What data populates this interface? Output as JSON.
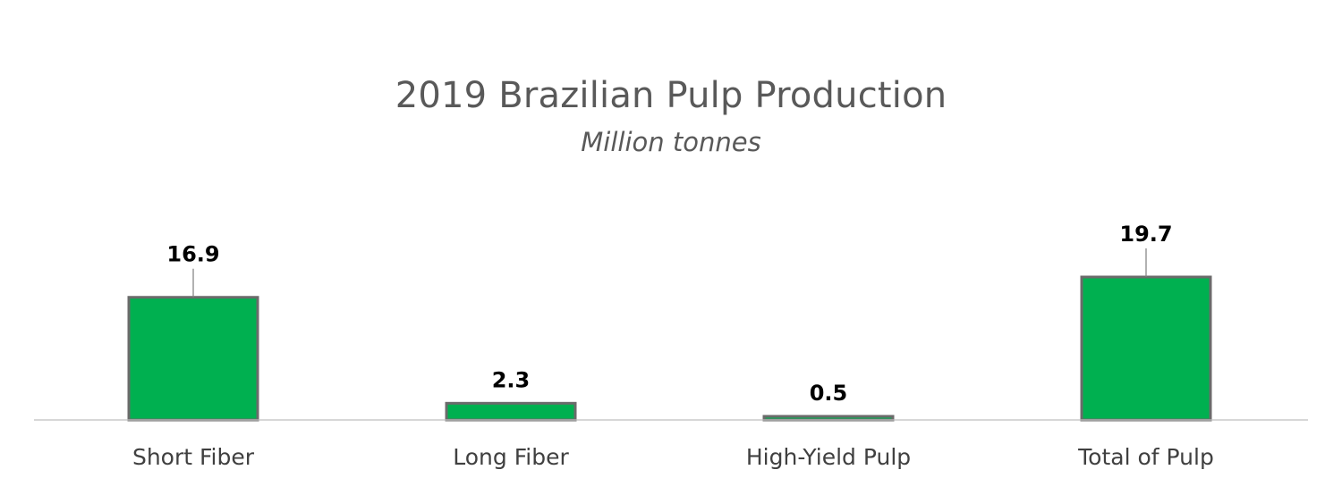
{
  "chart_data": {
    "type": "bar",
    "title": "2019 Brazilian Pulp Production",
    "subtitle": "Million tonnes",
    "categories": [
      "Short Fiber",
      "Long Fiber",
      "High-Yield Pulp",
      "Total of Pulp"
    ],
    "values": [
      16.9,
      2.3,
      0.5,
      19.7
    ],
    "data_labels": [
      "16.9",
      "2.3",
      "0.5",
      "19.7"
    ],
    "xlabel": "",
    "ylabel": "",
    "ylim": [
      0,
      19.7
    ],
    "grid": false,
    "legend": "none",
    "colors": {
      "bar_fill": "#00b050",
      "bar_outline": "#6b6b6b",
      "text": "#595959"
    }
  }
}
